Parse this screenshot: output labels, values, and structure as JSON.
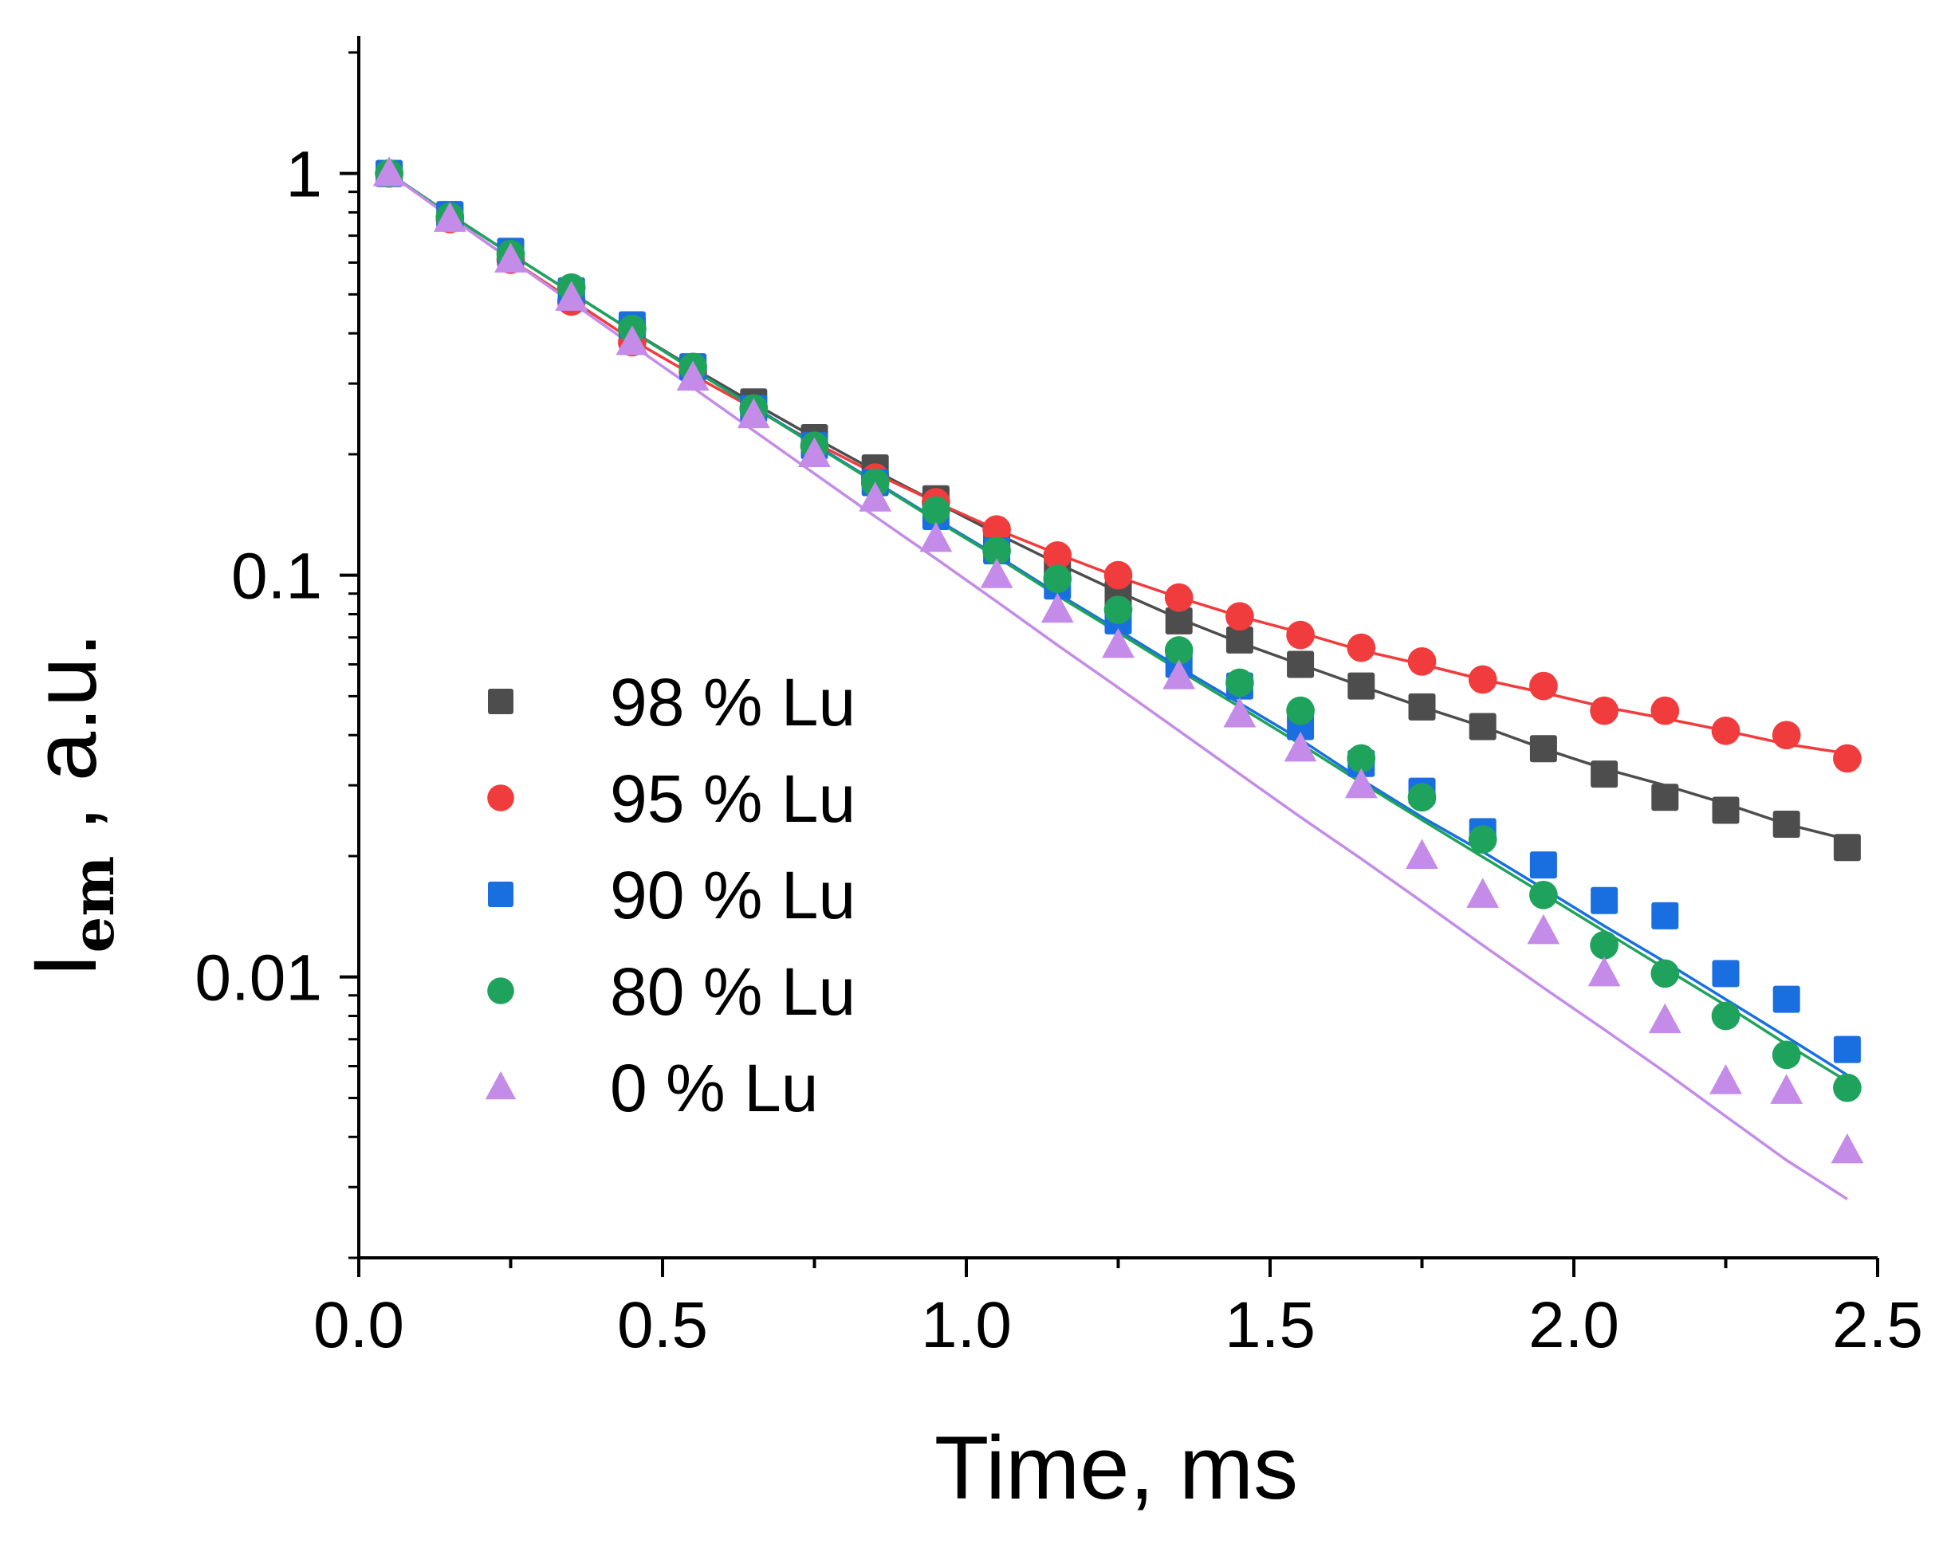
{
  "chart_data": {
    "type": "scatter",
    "title": "",
    "xlabel": "Time, ms",
    "ylabel": "I",
    "ylabel_subscript": "em",
    "ylabel_suffix": " , a.u.",
    "xlim": [
      0.0,
      2.5
    ],
    "ylim": [
      0.002,
      2.2
    ],
    "yscale": "log",
    "x_ticks": [
      0.0,
      0.5,
      1.0,
      1.5,
      2.0,
      2.5
    ],
    "x_tick_labels": [
      "0.0",
      "0.5",
      "1.0",
      "1.5",
      "2.0",
      "2.5"
    ],
    "y_ticks": [
      0.01,
      0.1,
      1
    ],
    "y_tick_labels": [
      "0.01",
      "0.1",
      "1"
    ],
    "grid": false,
    "legend_position": "center-left",
    "x": [
      0.05,
      0.15,
      0.25,
      0.35,
      0.45,
      0.55,
      0.65,
      0.75,
      0.85,
      0.95,
      1.05,
      1.15,
      1.25,
      1.35,
      1.45,
      1.55,
      1.65,
      1.75,
      1.85,
      1.95,
      2.05,
      2.15,
      2.25,
      2.35,
      2.45
    ],
    "series": [
      {
        "name": "98 % Lu",
        "color": "#4d4d4d",
        "marker": "square",
        "values": [
          1.0,
          0.79,
          0.63,
          0.51,
          0.41,
          0.33,
          0.27,
          0.22,
          0.185,
          0.155,
          0.125,
          0.105,
          0.09,
          0.077,
          0.069,
          0.06,
          0.053,
          0.047,
          0.042,
          0.037,
          0.032,
          0.028,
          0.026,
          0.024,
          0.021
        ],
        "fit": [
          1.0,
          0.79,
          0.63,
          0.505,
          0.405,
          0.328,
          0.268,
          0.22,
          0.182,
          0.152,
          0.127,
          0.107,
          0.091,
          0.078,
          0.068,
          0.06,
          0.053,
          0.047,
          0.042,
          0.037,
          0.033,
          0.03,
          0.027,
          0.024,
          0.022
        ]
      },
      {
        "name": "95 % Lu",
        "color": "#f03c3c",
        "marker": "circle",
        "values": [
          1.0,
          0.77,
          0.61,
          0.48,
          0.38,
          0.32,
          0.26,
          0.21,
          0.175,
          0.152,
          0.13,
          0.112,
          0.1,
          0.088,
          0.079,
          0.071,
          0.066,
          0.061,
          0.055,
          0.053,
          0.046,
          0.046,
          0.041,
          0.04,
          0.035
        ],
        "fit": [
          1.0,
          0.78,
          0.61,
          0.485,
          0.385,
          0.315,
          0.26,
          0.214,
          0.179,
          0.152,
          0.13,
          0.113,
          0.099,
          0.088,
          0.079,
          0.072,
          0.065,
          0.06,
          0.055,
          0.051,
          0.047,
          0.044,
          0.041,
          0.038,
          0.036
        ]
      },
      {
        "name": "90 % Lu",
        "color": "#1a6fe0",
        "marker": "square",
        "values": [
          1.0,
          0.79,
          0.64,
          0.51,
          0.42,
          0.33,
          0.26,
          0.21,
          0.17,
          0.14,
          0.115,
          0.094,
          0.077,
          0.06,
          0.053,
          0.042,
          0.034,
          0.029,
          0.023,
          0.019,
          0.0155,
          0.0142,
          0.0102,
          0.0088,
          0.0066
        ],
        "fit": [
          1.0,
          0.79,
          0.63,
          0.505,
          0.405,
          0.325,
          0.263,
          0.212,
          0.171,
          0.138,
          0.112,
          0.09,
          0.073,
          0.059,
          0.048,
          0.039,
          0.031,
          0.025,
          0.0205,
          0.0166,
          0.0134,
          0.0109,
          0.0088,
          0.0071,
          0.0057
        ]
      },
      {
        "name": "80 % Lu",
        "color": "#1fa35c",
        "marker": "circle",
        "values": [
          1.0,
          0.78,
          0.63,
          0.52,
          0.41,
          0.33,
          0.26,
          0.21,
          0.17,
          0.145,
          0.115,
          0.098,
          0.082,
          0.065,
          0.054,
          0.046,
          0.035,
          0.028,
          0.022,
          0.016,
          0.012,
          0.0102,
          0.008,
          0.0064,
          0.0053
        ],
        "fit": [
          1.0,
          0.79,
          0.63,
          0.505,
          0.405,
          0.325,
          0.262,
          0.211,
          0.17,
          0.137,
          0.111,
          0.089,
          0.072,
          0.058,
          0.047,
          0.038,
          0.0305,
          0.0246,
          0.0199,
          0.0161,
          0.013,
          0.0105,
          0.0085,
          0.0068,
          0.0055
        ]
      },
      {
        "name": "0 % Lu",
        "color": "#c48be8",
        "marker": "triangle",
        "values": [
          1.0,
          0.77,
          0.61,
          0.49,
          0.38,
          0.31,
          0.25,
          0.2,
          0.155,
          0.123,
          0.1,
          0.082,
          0.067,
          0.056,
          0.045,
          0.037,
          0.03,
          0.02,
          0.016,
          0.013,
          0.0102,
          0.0078,
          0.0055,
          0.0052,
          0.0037
        ],
        "fit": [
          1.0,
          0.78,
          0.61,
          0.478,
          0.374,
          0.293,
          0.229,
          0.179,
          0.14,
          0.11,
          0.086,
          0.067,
          0.0525,
          0.041,
          0.032,
          0.025,
          0.0197,
          0.0154,
          0.012,
          0.0094,
          0.0074,
          0.0058,
          0.0045,
          0.0035,
          0.0028
        ]
      }
    ]
  }
}
